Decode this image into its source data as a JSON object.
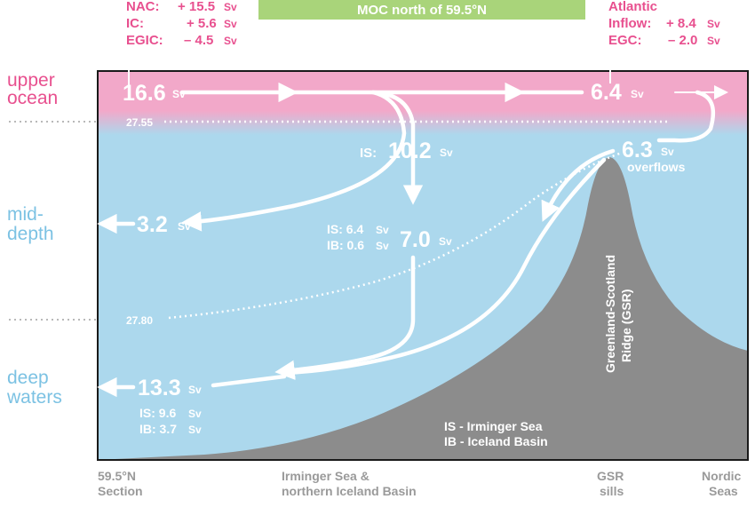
{
  "title_bar": {
    "label": "MOC north of 59.5°N",
    "color": "#a9d47a"
  },
  "colors": {
    "upper": "#f0a6c8",
    "water": "#acd8ed",
    "ridge": "#8c8c8c",
    "pink_text": "#e8508f",
    "blue_text": "#7cc2e3",
    "gray_text": "#9a9a9a"
  },
  "left_labels": {
    "upper_1": "upper",
    "upper_2": "ocean",
    "mid_1": "mid-",
    "mid_2": "depth",
    "deep_1": "deep",
    "deep_2": "waters"
  },
  "inflow_left": {
    "nac": "NAC:",
    "nac_val": "+ 15.5",
    "ic": "IC:",
    "ic_val": "+ 5.6",
    "egic": "EGIC:",
    "egic_val": "– 4.5",
    "unit": "Sv"
  },
  "inflow_right": {
    "l1": "Atlantic",
    "l2": "Inflow:",
    "l2_val": "+ 8.4",
    "l3": "EGC:",
    "l3_val": "– 2.0",
    "unit": "Sv"
  },
  "isopycnals": {
    "upper": "27.55",
    "lower": "27.80"
  },
  "flows": {
    "upper_total": "16.6",
    "nordic": "6.4",
    "overflows_val": "6.3",
    "overflows_label": "overflows",
    "is_mid_prefix": "IS:",
    "is_mid_val": "10.2",
    "mid_out": "3.2",
    "is_ib_1": "IS: 6.4",
    "is_ib_2": "IB: 0.6",
    "is_ib_total": "7.0",
    "deep_total": "13.3",
    "deep_is": "IS: 9.6",
    "deep_ib": "IB: 3.7",
    "unit": "Sv"
  },
  "ridge_label": {
    "l1": "Greenland-Scotland",
    "l2": "Ridge (GSR)"
  },
  "legend": {
    "l1": "IS - Irminger Sea",
    "l2": "IB - Iceland Basin"
  },
  "bottom_labels": {
    "a1": "59.5°N",
    "a2": "Section",
    "b1": "Irminger Sea &",
    "b2": "northern Iceland Basin",
    "c1": "GSR",
    "c2": "sills",
    "d1": "Nordic",
    "d2": "Seas"
  }
}
